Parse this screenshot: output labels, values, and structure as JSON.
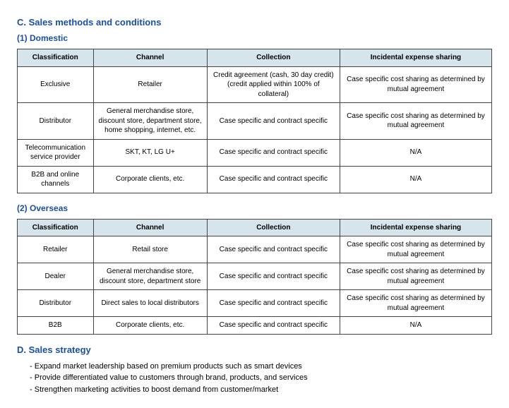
{
  "heading_c": "C. Sales methods and conditions",
  "heading_d": "D. Sales strategy",
  "domestic": {
    "label": "(1) Domestic",
    "columns": [
      "Classification",
      "Channel",
      "Collection",
      "Incidental expense sharing"
    ],
    "rows": [
      [
        "Exclusive",
        "Retailer",
        "Credit agreement (cash, 30 day credit) (credit applied within 100% of collateral)",
        "Case specific cost sharing as determined by mutual agreement"
      ],
      [
        "Distributor",
        "General merchandise store, discount store, department store, home shopping, internet, etc.",
        "Case specific and contract specific",
        "Case specific cost sharing as determined by mutual agreement"
      ],
      [
        "Telecommunication service provider",
        "SKT, KT, LG U+",
        "Case specific and contract specific",
        "N/A"
      ],
      [
        "B2B and online channels",
        "Corporate clients, etc.",
        "Case specific and contract specific",
        "N/A"
      ]
    ],
    "col_widths": [
      "16%",
      "24%",
      "28%",
      "32%"
    ]
  },
  "overseas": {
    "label": "(2) Overseas",
    "columns": [
      "Classification",
      "Channel",
      "Collection",
      "Incidental expense sharing"
    ],
    "rows": [
      [
        "Retailer",
        "Retail store",
        "Case specific and contract specific",
        "Case specific cost sharing as determined by mutual agreement"
      ],
      [
        "Dealer",
        "General merchandise store, discount store, department store",
        "Case specific and contract specific",
        "Case specific cost sharing as determined by mutual agreement"
      ],
      [
        "Distributor",
        "Direct sales to local distributors",
        "Case specific and contract specific",
        "Case specific cost sharing as determined by mutual agreement"
      ],
      [
        "B2B",
        "Corporate clients, etc.",
        "Case specific and contract specific",
        "N/A"
      ]
    ],
    "col_widths": [
      "16%",
      "24%",
      "28%",
      "32%"
    ]
  },
  "strategy": [
    "Expand market leadership based on premium products such as smart devices",
    "Provide differentiated value to customers through brand, products, and services",
    "Strengthen marketing activities to boost demand from customer/market"
  ],
  "colors": {
    "heading": "#1a4fa3",
    "header_bg": "#d6e4eb",
    "border": "#444444",
    "background": "#ffffff",
    "text": "#000000"
  },
  "typography": {
    "body_font": "Arial, Helvetica, sans-serif",
    "heading_fontsize": 13,
    "subheading_fontsize": 12,
    "table_fontsize": 10,
    "strategy_fontsize": 11
  }
}
